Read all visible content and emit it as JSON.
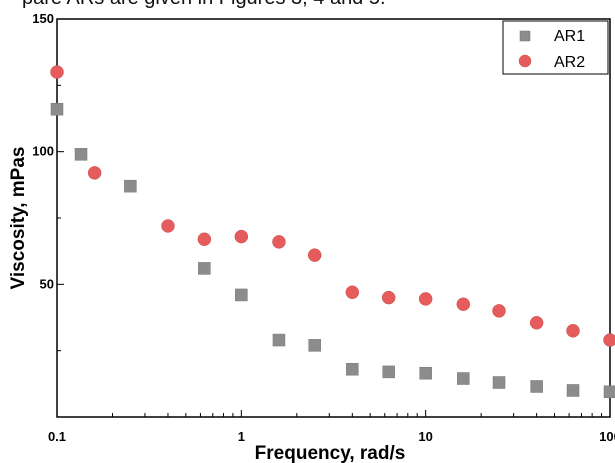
{
  "top_text": "pare ARs are given in Figures 3, 4 and 5.",
  "chart_data": {
    "type": "scatter",
    "title": "",
    "xlabel": "Frequency, rad/s",
    "ylabel": "Viscosity, mPas",
    "xscale": "log",
    "xlim": [
      0.1,
      100
    ],
    "ylim": [
      0,
      150
    ],
    "xticks": [
      "0.1",
      "1",
      "10",
      "100"
    ],
    "yticks": [
      "50",
      "100",
      "150"
    ],
    "grid": false,
    "legend": "top-right",
    "series": [
      {
        "name": "AR1",
        "marker": "square",
        "color": "#8c8c8c",
        "x": [
          0.1,
          0.135,
          0.25,
          0.63,
          1.0,
          1.6,
          2.5,
          4.0,
          6.3,
          10,
          16,
          25,
          40,
          63,
          100
        ],
        "y": [
          116,
          99,
          87,
          56,
          46,
          29,
          27,
          18,
          17,
          16.5,
          14.5,
          13,
          11.5,
          10,
          9.5
        ]
      },
      {
        "name": "AR2",
        "marker": "circle",
        "color": "#e65c5c",
        "x": [
          0.1,
          0.16,
          0.4,
          0.63,
          1.0,
          1.6,
          2.5,
          4.0,
          6.3,
          10,
          16,
          25,
          40,
          63,
          100
        ],
        "y": [
          130,
          92,
          72,
          67,
          68,
          66,
          61,
          47,
          45,
          44.5,
          42.5,
          40,
          35.5,
          32.5,
          29
        ]
      }
    ]
  }
}
